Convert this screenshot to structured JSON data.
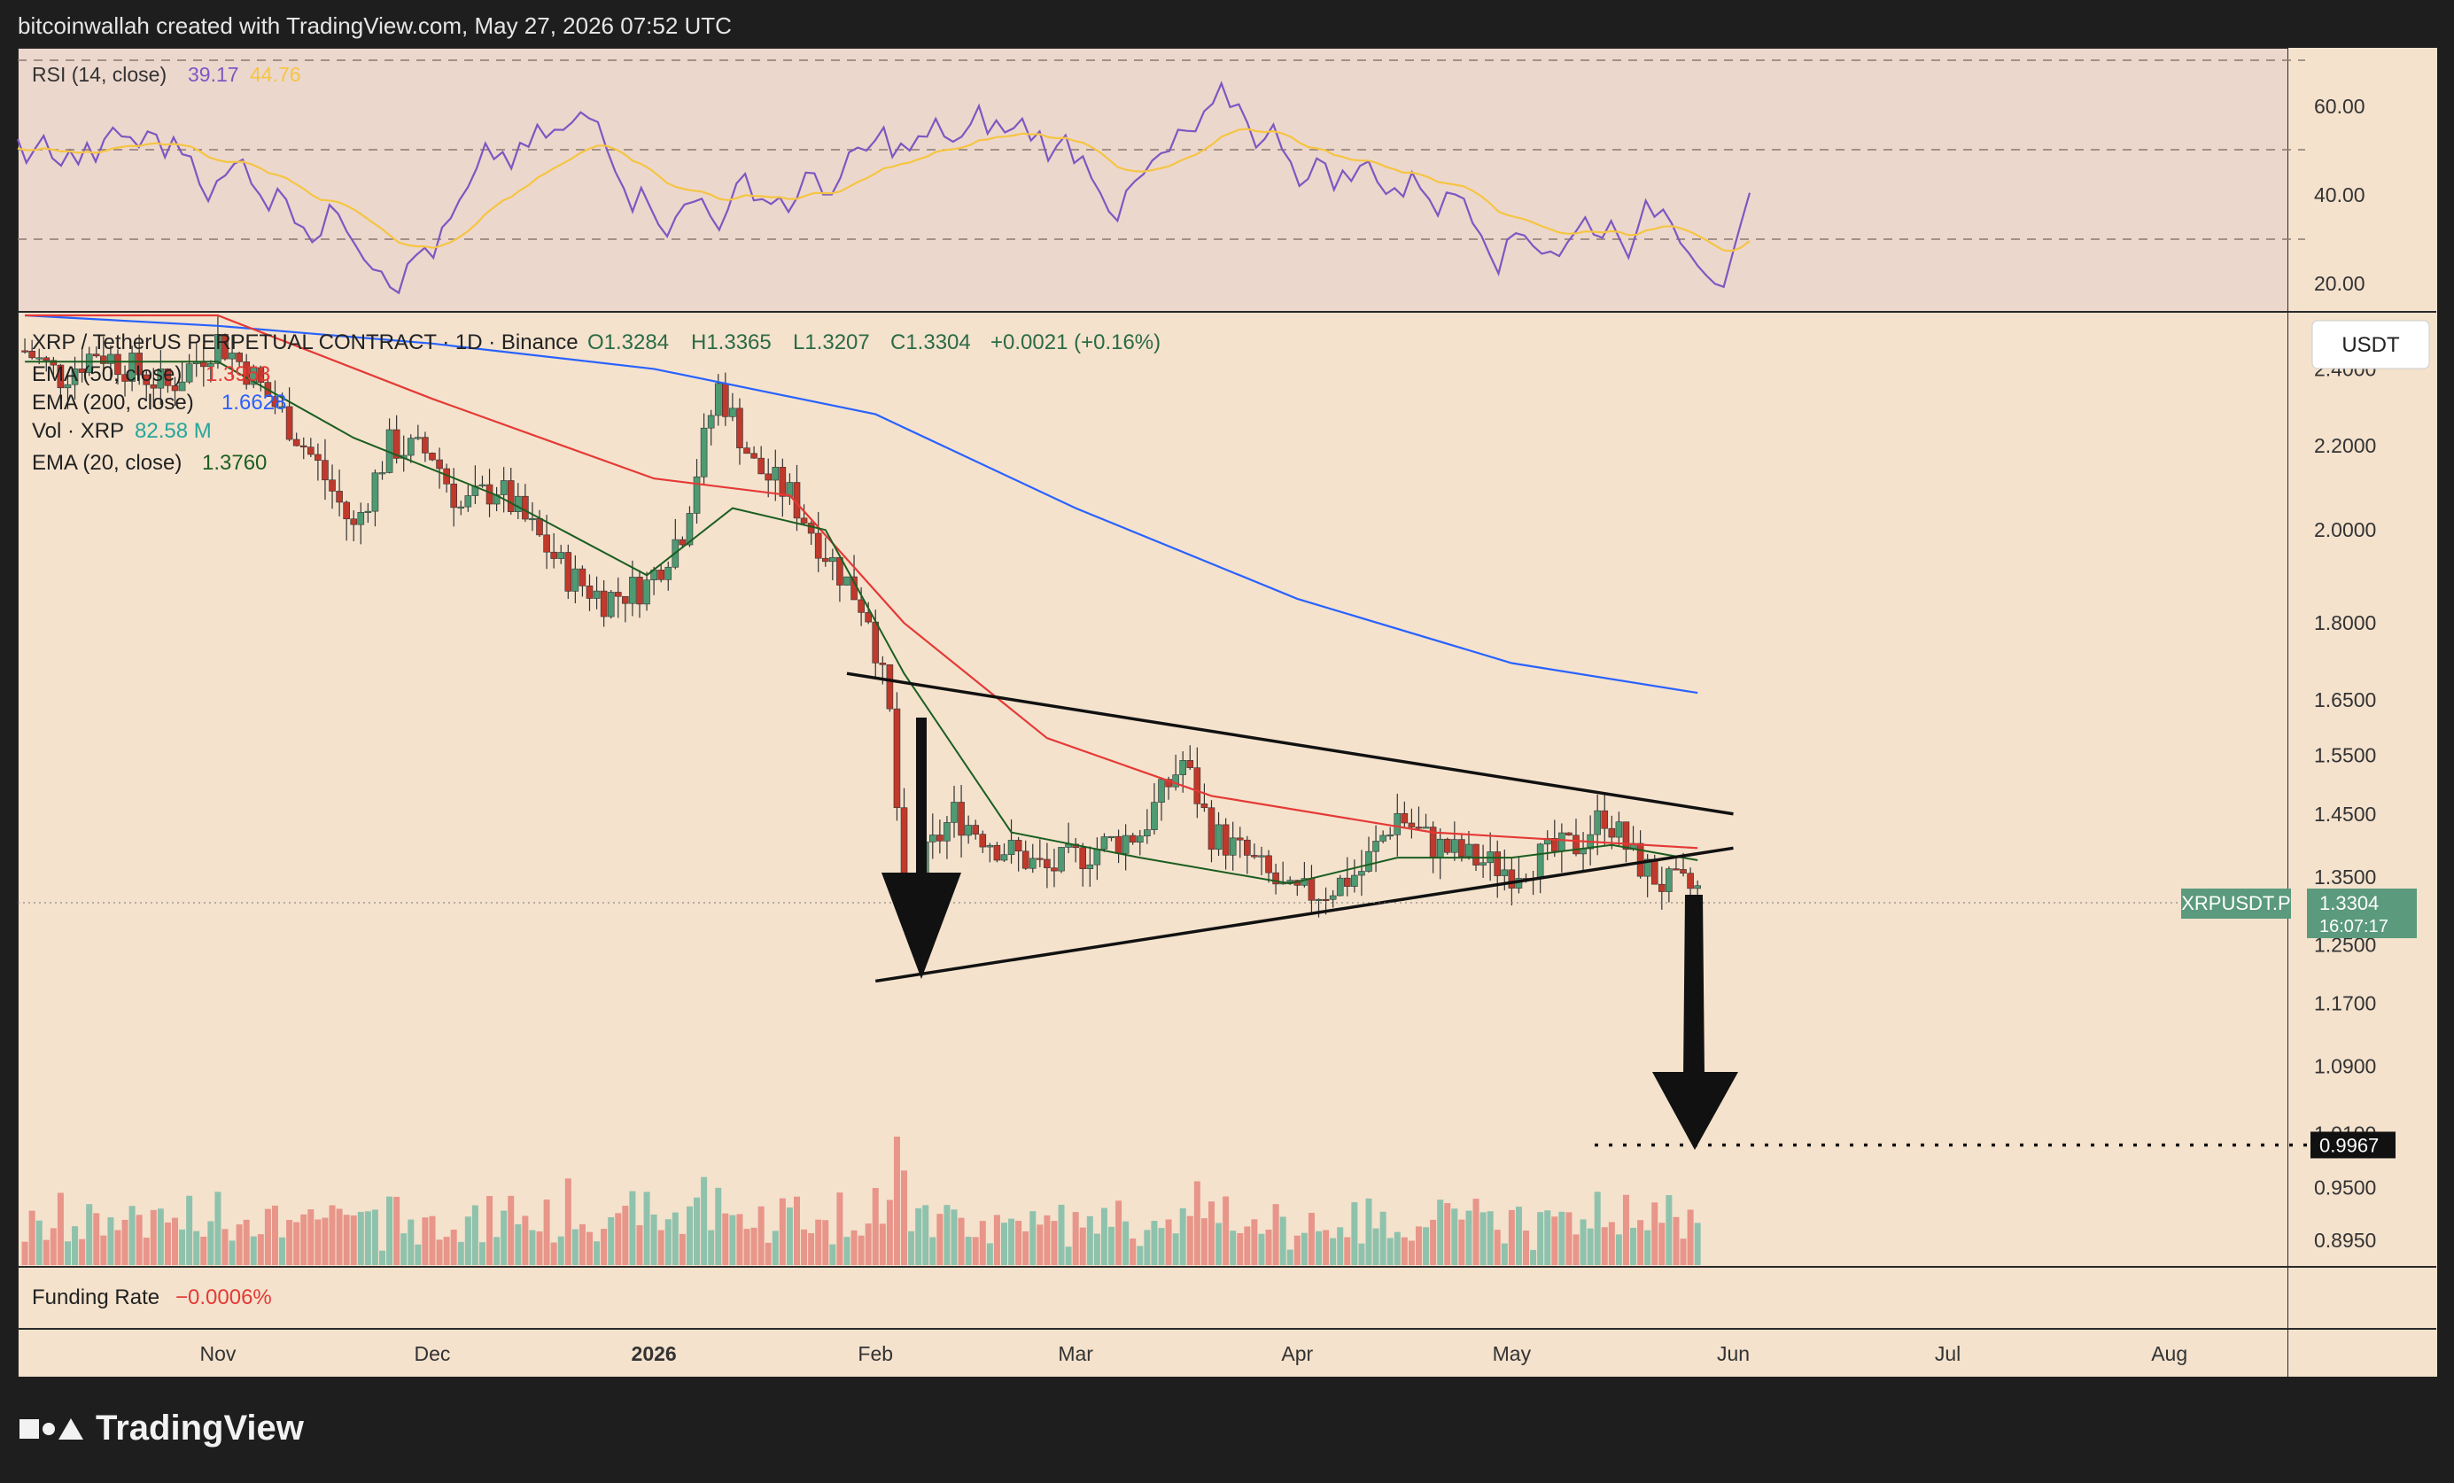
{
  "header": {
    "attribution": "bitcoinwallah created with TradingView.com, May 27, 2026 07:52 UTC"
  },
  "branding": {
    "logo_text": "TradingView",
    "logo_icon": "tradingview-logo-icon"
  },
  "rsi_panel": {
    "label": "RSI (14, close)",
    "rsi_value": "39.17",
    "ma_value": "44.76",
    "ticks": [
      "60.00",
      "40.00",
      "20.00"
    ],
    "colors": {
      "rsi": "#7e57c2",
      "ma": "#f5c542"
    }
  },
  "price_panel": {
    "symbol_line": {
      "pair": "XRP / TetherUS PERPETUAL CONTRACT · 1D · Binance",
      "o": "O1.3284",
      "h": "H1.3365",
      "l": "L1.3207",
      "c": "C1.3304",
      "change": "+0.0021 (+0.16%)"
    },
    "indicators": [
      {
        "label": "EMA (50, close)",
        "value": "1.3953",
        "color": "#e53935"
      },
      {
        "label": "EMA (200, close)",
        "value": "1.6628",
        "color": "#2962ff"
      },
      {
        "label": "Vol · XRP",
        "value": "82.58 M",
        "color": "#26a69a"
      },
      {
        "label": "EMA (20, close)",
        "value": "1.3760",
        "color": "#1b5e20"
      }
    ],
    "currency_button": "USDT",
    "price_ticks": [
      "2.4000",
      "2.2000",
      "2.0000",
      "1.8000",
      "1.6500",
      "1.5500",
      "1.4500",
      "1.3500",
      "1.2500",
      "1.1700",
      "1.0900",
      "1.0100",
      "0.9500",
      "0.8950"
    ],
    "last_price_tag": {
      "symbol": "XRPUSDT.P",
      "price": "1.3304",
      "countdown": "16:07:17",
      "color": "#5b9a7c"
    },
    "target_tag": {
      "price": "0.9967"
    }
  },
  "funding_panel": {
    "label": "Funding Rate",
    "value": "−0.0006%",
    "value_color": "#e53935"
  },
  "time_axis": [
    "Nov",
    "Dec",
    "2026",
    "Feb",
    "Mar",
    "Apr",
    "May",
    "Jun",
    "Jul",
    "Aug"
  ],
  "chart_data": {
    "type": "line",
    "title": "XRP / TetherUS PERPETUAL CONTRACT · 1D · Binance",
    "y_range": [
      0.87,
      2.55
    ],
    "x_range": [
      "2025-10-04",
      "2026-08-20"
    ],
    "log_scale": true,
    "close_series": {
      "dates": [
        "2025-10-05",
        "2025-10-10",
        "2025-10-15",
        "2025-10-20",
        "2025-10-25",
        "2025-11-01",
        "2025-11-05",
        "2025-11-10",
        "2025-11-15",
        "2025-11-20",
        "2025-11-25",
        "2025-12-01",
        "2025-12-05",
        "2025-12-10",
        "2025-12-15",
        "2025-12-20",
        "2025-12-25",
        "2025-12-31",
        "2026-01-05",
        "2026-01-10",
        "2026-01-15",
        "2026-01-20",
        "2026-01-25",
        "2026-01-31",
        "2026-02-03",
        "2026-02-05",
        "2026-02-08",
        "2026-02-12",
        "2026-02-18",
        "2026-02-25",
        "2026-03-01",
        "2026-03-05",
        "2026-03-10",
        "2026-03-16",
        "2026-03-20",
        "2026-03-25",
        "2026-03-31",
        "2026-04-05",
        "2026-04-10",
        "2026-04-15",
        "2026-04-20",
        "2026-04-25",
        "2026-05-01",
        "2026-05-05",
        "2026-05-10",
        "2026-05-14",
        "2026-05-18",
        "2026-05-22",
        "2026-05-27"
      ],
      "values": [
        2.45,
        2.38,
        2.45,
        2.4,
        2.35,
        2.48,
        2.4,
        2.28,
        2.15,
        2.0,
        2.2,
        2.18,
        2.05,
        2.1,
        2.0,
        1.9,
        1.85,
        1.88,
        2.0,
        2.35,
        2.15,
        2.08,
        1.95,
        1.82,
        1.62,
        1.3,
        1.38,
        1.45,
        1.4,
        1.36,
        1.38,
        1.4,
        1.42,
        1.54,
        1.42,
        1.38,
        1.32,
        1.33,
        1.36,
        1.45,
        1.4,
        1.38,
        1.36,
        1.38,
        1.4,
        1.45,
        1.38,
        1.34,
        1.33
      ]
    },
    "ema_20": {
      "name": "EMA (20, close)",
      "dates": [
        "2025-10-05",
        "2025-11-01",
        "2025-11-20",
        "2025-12-10",
        "2025-12-31",
        "2026-01-12",
        "2026-01-25",
        "2026-02-05",
        "2026-02-20",
        "2026-03-10",
        "2026-03-31",
        "2026-04-15",
        "2026-05-01",
        "2026-05-15",
        "2026-05-27"
      ],
      "values": [
        2.42,
        2.42,
        2.22,
        2.08,
        1.9,
        2.05,
        2.0,
        1.7,
        1.42,
        1.38,
        1.34,
        1.38,
        1.38,
        1.4,
        1.376
      ]
    },
    "ema_50": {
      "name": "EMA (50, close)",
      "dates": [
        "2025-10-05",
        "2025-11-01",
        "2025-12-01",
        "2026-01-01",
        "2026-01-20",
        "2026-02-05",
        "2026-02-25",
        "2026-03-20",
        "2026-04-20",
        "2026-05-27"
      ],
      "values": [
        2.55,
        2.55,
        2.32,
        2.12,
        2.08,
        1.8,
        1.58,
        1.48,
        1.42,
        1.395
      ]
    },
    "ema_200": {
      "name": "EMA (200, close)",
      "dates": [
        "2025-10-05",
        "2025-11-01",
        "2025-12-01",
        "2026-01-01",
        "2026-02-01",
        "2026-03-01",
        "2026-04-01",
        "2026-05-01",
        "2026-05-27"
      ],
      "values": [
        2.55,
        2.52,
        2.47,
        2.4,
        2.28,
        2.05,
        1.85,
        1.72,
        1.663
      ]
    },
    "trendlines": [
      {
        "name": "upper",
        "from": [
          "2026-01-28",
          1.7
        ],
        "to": [
          "2026-06-01",
          1.45
        ]
      },
      {
        "name": "lower",
        "from": [
          "2026-02-01",
          1.2
        ],
        "to": [
          "2026-06-01",
          1.395
        ]
      }
    ],
    "target_level": 0.9967
  }
}
